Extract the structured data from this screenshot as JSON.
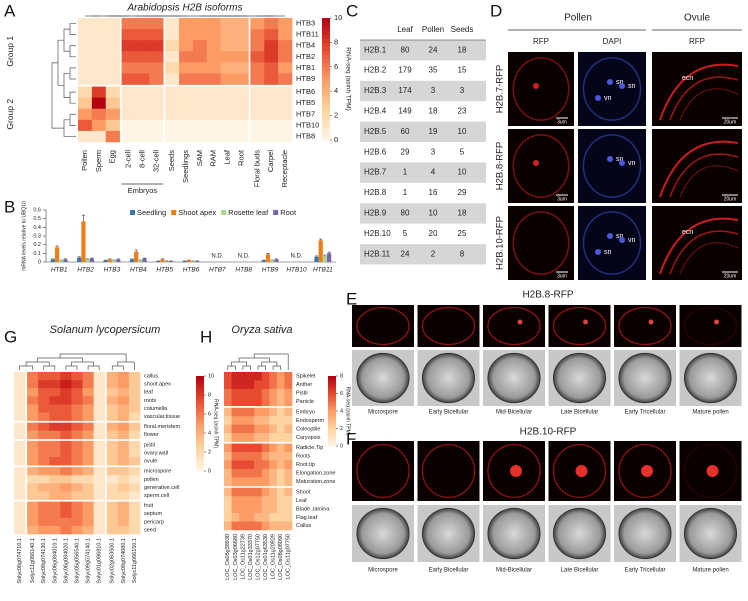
{
  "panel_labels": [
    "A",
    "B",
    "C",
    "D",
    "E",
    "F",
    "G",
    "H"
  ],
  "chart_data": [
    {
      "type": "heatmap",
      "title": "Arabidopsis H2B isoforms",
      "categories": [
        "Pollen",
        "Sperm",
        "Egg",
        "2-cell",
        "8-cell",
        "32-cell",
        "Seeds",
        "Seedlings",
        "SAM",
        "RAM",
        "Leaf",
        "Root",
        "Floral buds",
        "Carpel",
        "Receptacle"
      ],
      "rows": [
        "HTB3",
        "HTB11",
        "HTB4",
        "HTB2",
        "HTB1",
        "HTB9",
        "HTB6",
        "HTB5",
        "HTB7",
        "HTB10",
        "HTB8"
      ],
      "groups": [
        "Group 1",
        "Group 2"
      ],
      "column_group": "Embryos",
      "values": [
        [
          1,
          1,
          1,
          6,
          6,
          6,
          1,
          5,
          5,
          5,
          4,
          4,
          5,
          6,
          5
        ],
        [
          1,
          1,
          1,
          7,
          7,
          7,
          1,
          5,
          5,
          5,
          4,
          4,
          6,
          7,
          5
        ],
        [
          1,
          1,
          1,
          8,
          8,
          8,
          2,
          5,
          6,
          5,
          4,
          4,
          6,
          8,
          6
        ],
        [
          1,
          1,
          1,
          7,
          7,
          7,
          1,
          6,
          6,
          5,
          5,
          5,
          7,
          8,
          6
        ],
        [
          1,
          1,
          1,
          6,
          6,
          6,
          2,
          5,
          5,
          5,
          4,
          4,
          6,
          7,
          5
        ],
        [
          1,
          1,
          1,
          7,
          7,
          6,
          1,
          6,
          6,
          6,
          5,
          5,
          6,
          7,
          6
        ],
        [
          2,
          8,
          2,
          1,
          1,
          1,
          1,
          1,
          1,
          1,
          1,
          1,
          1,
          1,
          1
        ],
        [
          3,
          10,
          3,
          1,
          1,
          1,
          1,
          1,
          1,
          1,
          1,
          1,
          1,
          1,
          1
        ],
        [
          5,
          6,
          5,
          1,
          1,
          1,
          1,
          1,
          1,
          1,
          1,
          1,
          1,
          1,
          1
        ],
        [
          7,
          5,
          3,
          0,
          0,
          0,
          0,
          0,
          0,
          0,
          0,
          0,
          0,
          0,
          0
        ],
        [
          1,
          1,
          6,
          0,
          0,
          0,
          0,
          0,
          0,
          0,
          0,
          0,
          0,
          0,
          0
        ]
      ],
      "zlim": [
        0,
        10
      ],
      "zticks": [
        0,
        2,
        4,
        6,
        8,
        10
      ],
      "colorbar_label": "RNA-seq (asinh TPM)",
      "colors": [
        "#fff5e6",
        "#fdd3a0",
        "#fc9b64",
        "#e64a30",
        "#b3000f"
      ]
    },
    {
      "type": "bar",
      "ylabel": "mRNA levels relative to UBQ10",
      "categories": [
        "HTB1",
        "HTB2",
        "HTB3",
        "HTB4",
        "HTB5",
        "HTB6",
        "HTB7",
        "HTB8",
        "HTB9",
        "HTB10",
        "HTB11"
      ],
      "series": [
        {
          "name": "Seedling",
          "color": "#3a77b0",
          "values": [
            0.03,
            0.05,
            0.02,
            0.03,
            0.01,
            0.01,
            null,
            null,
            0.02,
            null,
            0.06
          ],
          "errors": [
            0.005,
            0.01,
            0.003,
            0.005,
            0.002,
            0.002,
            null,
            null,
            0.003,
            null,
            0.01
          ]
        },
        {
          "name": "Shoot apex",
          "color": "#f07d1a",
          "values": [
            0.17,
            0.47,
            0.03,
            0.12,
            0.03,
            0.02,
            null,
            null,
            0.09,
            null,
            0.25
          ],
          "errors": [
            0.015,
            0.07,
            0.005,
            0.02,
            0.005,
            0.003,
            null,
            null,
            0.01,
            null,
            0.015
          ]
        },
        {
          "name": "Rosette leaf",
          "color": "#a6d98a",
          "values": [
            0.02,
            0.03,
            0.02,
            0.02,
            0.01,
            0.01,
            null,
            null,
            0.02,
            null,
            0.07
          ],
          "errors": [
            0.003,
            0.005,
            0.003,
            0.003,
            0.002,
            0.002,
            null,
            null,
            0.003,
            null,
            0.01
          ]
        },
        {
          "name": "Root",
          "color": "#7a63a8",
          "values": [
            0.03,
            0.04,
            0.03,
            0.04,
            0.01,
            0.01,
            null,
            null,
            0.03,
            null,
            0.1
          ],
          "errors": [
            0.005,
            0.005,
            0.005,
            0.005,
            0.002,
            0.002,
            null,
            null,
            0.005,
            null,
            0.015
          ]
        }
      ],
      "annotations": [
        {
          "text": "N.D.",
          "category": "HTB7"
        },
        {
          "text": "N.D.",
          "category": "HTB8"
        },
        {
          "text": "N.D.",
          "category": "HTB10"
        }
      ],
      "ylim": [
        0,
        0.6
      ],
      "yticks": [
        0,
        0.1,
        0.2,
        0.3,
        0.4,
        0.5,
        0.6
      ],
      "legend": "top-right"
    },
    {
      "type": "heatmap",
      "title": "Solanum lycopersicum",
      "categories": [
        "Solyc06g074710.1",
        "Solyc11g066140.1",
        "Solyc09g074130.1",
        "Solyc06g084010.1",
        "Solyc06g084020.1",
        "Solyc05g056540.1",
        "Solyc09g074140.1",
        "Solyc01g086810.1",
        "Solyc02g063500.1",
        "Solyc09g074080.1",
        "Solyc11g066150.1"
      ],
      "rows": [
        "callus",
        "shoot.apex",
        "leaf",
        "roots",
        "columella",
        "vascular.tissue",
        "floral.meristem",
        "flower",
        "pistil",
        "ovary.wall",
        "ovule",
        "microspore",
        "pollen",
        "generative.cell",
        "sperm.cell",
        "fruit",
        "septum",
        "pericarp",
        "seed"
      ],
      "values": [
        [
          1,
          6,
          7,
          7,
          8,
          7,
          6,
          1,
          4,
          5,
          3
        ],
        [
          1,
          6,
          8,
          8,
          9,
          8,
          6,
          1,
          4,
          5,
          3
        ],
        [
          1,
          5,
          7,
          7,
          8,
          7,
          5,
          1,
          3,
          4,
          3
        ],
        [
          1,
          6,
          7,
          8,
          8,
          7,
          6,
          1,
          4,
          5,
          3
        ],
        [
          1,
          5,
          7,
          7,
          7,
          6,
          5,
          1,
          3,
          4,
          3
        ],
        [
          1,
          5,
          6,
          7,
          7,
          6,
          5,
          1,
          3,
          4,
          2
        ],
        [
          1,
          6,
          7,
          8,
          8,
          7,
          6,
          1,
          4,
          5,
          3
        ],
        [
          1,
          5,
          6,
          6,
          7,
          6,
          5,
          1,
          3,
          4,
          2
        ],
        [
          1,
          5,
          6,
          6,
          7,
          6,
          5,
          1,
          3,
          4,
          2
        ],
        [
          1,
          5,
          6,
          6,
          7,
          6,
          5,
          1,
          3,
          4,
          2
        ],
        [
          1,
          5,
          6,
          7,
          7,
          6,
          5,
          1,
          3,
          4,
          3
        ],
        [
          1,
          4,
          5,
          5,
          6,
          5,
          4,
          1,
          3,
          3,
          2
        ],
        [
          1,
          2,
          2,
          3,
          3,
          2,
          2,
          1,
          1,
          2,
          1
        ],
        [
          1,
          3,
          4,
          4,
          5,
          4,
          3,
          1,
          2,
          3,
          2
        ],
        [
          1,
          3,
          3,
          4,
          4,
          3,
          3,
          1,
          2,
          2,
          1
        ],
        [
          1,
          5,
          6,
          6,
          7,
          6,
          5,
          1,
          3,
          4,
          2
        ],
        [
          1,
          5,
          6,
          6,
          7,
          6,
          5,
          1,
          3,
          4,
          2
        ],
        [
          1,
          5,
          6,
          6,
          6,
          6,
          5,
          1,
          3,
          4,
          2
        ],
        [
          1,
          4,
          5,
          5,
          6,
          5,
          4,
          1,
          3,
          3,
          2
        ]
      ],
      "zlim": [
        0,
        10
      ],
      "zticks": [
        0,
        2,
        4,
        6,
        8,
        10
      ],
      "colorbar_label": "RNA-seq (asinh TPM)",
      "colors": [
        "#fff5e6",
        "#fdd3a0",
        "#fc9b64",
        "#e64a30",
        "#b3000f"
      ]
    },
    {
      "type": "heatmap",
      "title": "Oryza sativa",
      "categories": [
        "LOC_Os05g38930",
        "LOC_Os03g06680",
        "LOC_Os11g22739",
        "LOC_Os01g33370",
        "LOC_Os12g07750",
        "LOC_Os01g63530",
        "LOC_Os11g20929",
        "LOC_Os08g08090",
        "LOC_Os11g07750"
      ],
      "rows": [
        "Spikelet",
        "Anther",
        "Pistil",
        "Panicle",
        "Embryo",
        "Endosperm",
        "Coleoptile",
        "Caryopsis",
        "Radicle.Tip",
        "Roots",
        "Root.tip",
        "Elongation.zone",
        "Maturation.zone",
        "Shoot",
        "Leaf",
        "Blade..lamina",
        "Flag.leaf",
        "Callus"
      ],
      "values": [
        [
          6,
          7,
          7,
          7,
          7,
          6,
          5,
          4,
          5
        ],
        [
          6,
          7,
          7,
          7,
          6,
          6,
          5,
          4,
          5
        ],
        [
          5,
          6,
          6,
          6,
          6,
          5,
          4,
          3,
          4
        ],
        [
          5,
          6,
          6,
          6,
          6,
          5,
          4,
          3,
          4
        ],
        [
          3,
          5,
          5,
          5,
          4,
          4,
          3,
          2,
          3
        ],
        [
          2,
          4,
          4,
          4,
          3,
          3,
          2,
          2,
          2
        ],
        [
          3,
          5,
          5,
          5,
          4,
          4,
          3,
          2,
          3
        ],
        [
          2,
          4,
          4,
          4,
          3,
          3,
          2,
          2,
          2
        ],
        [
          4,
          6,
          6,
          6,
          6,
          5,
          4,
          3,
          4
        ],
        [
          3,
          5,
          5,
          5,
          5,
          4,
          3,
          3,
          3
        ],
        [
          4,
          6,
          6,
          6,
          5,
          5,
          4,
          3,
          4
        ],
        [
          3,
          5,
          5,
          5,
          5,
          4,
          3,
          2,
          3
        ],
        [
          3,
          4,
          4,
          4,
          4,
          4,
          3,
          2,
          3
        ],
        [
          3,
          5,
          5,
          5,
          5,
          4,
          3,
          2,
          3
        ],
        [
          2,
          4,
          4,
          4,
          4,
          3,
          3,
          2,
          2
        ],
        [
          2,
          4,
          4,
          4,
          4,
          3,
          3,
          2,
          2
        ],
        [
          2,
          3,
          4,
          4,
          3,
          3,
          2,
          2,
          2
        ],
        [
          3,
          5,
          5,
          5,
          5,
          4,
          3,
          3,
          3
        ]
      ],
      "zlim": [
        0,
        8
      ],
      "zticks": [
        0,
        2,
        4,
        6,
        8
      ],
      "colorbar_label": "RNA-seq (asinh TPM)",
      "colors": [
        "#fff5e6",
        "#fdd3a0",
        "#fc9b64",
        "#e64a30",
        "#b3000f"
      ]
    }
  ],
  "table_C": {
    "columns": [
      "Leaf",
      "Pollen",
      "Seeds"
    ],
    "rows": [
      [
        "H2B.1",
        80,
        24,
        18
      ],
      [
        "H2B.2",
        179,
        35,
        15
      ],
      [
        "H2B.3",
        174,
        3,
        3
      ],
      [
        "H2B.4",
        149,
        18,
        23
      ],
      [
        "H2B.5",
        60,
        19,
        10
      ],
      [
        "H2B.6",
        29,
        3,
        5
      ],
      [
        "H2B.7",
        1,
        4,
        10
      ],
      [
        "H2B.8",
        1,
        16,
        29
      ],
      [
        "H2B.9",
        80,
        10,
        18
      ],
      [
        "H2B.10",
        5,
        20,
        25
      ],
      [
        "H2B.11",
        24,
        2,
        8
      ]
    ]
  },
  "panel_D": {
    "groups": [
      "Pollen",
      "Ovule"
    ],
    "channels": [
      "RFP",
      "DAPI",
      "RFP"
    ],
    "rows": [
      {
        "label": "H2B.7-RFP",
        "dapi_labels": [
          "sn",
          "sn",
          "vn"
        ],
        "ovule_labels": [
          "ecn"
        ],
        "scale_bars": [
          "3um",
          "20um"
        ]
      },
      {
        "label": "H2B.8-RFP",
        "dapi_labels": [
          "sn",
          "vn"
        ],
        "ovule_labels": [],
        "scale_bars": [
          "3um",
          "20um"
        ]
      },
      {
        "label": "H2B.10-RFP",
        "dapi_labels": [
          "sn",
          "vn",
          "sn"
        ],
        "ovule_labels": [
          "ecn"
        ],
        "scale_bars": [
          "3um",
          "20um"
        ]
      }
    ]
  },
  "panel_E": {
    "title": "H2B.8-RFP",
    "stages": [
      "Microspore",
      "Early Bicellular",
      "Mid-Bicellular",
      "Late Bicellular",
      "Early Tricellular",
      "Mature pollen"
    ]
  },
  "panel_F": {
    "title": "H2B.10-RFP",
    "stages": [
      "Microspore",
      "Early Bicellular",
      "Mid-Bicellular",
      "Late Bicellular",
      "Early Tricellular",
      "Mature pollen"
    ]
  }
}
